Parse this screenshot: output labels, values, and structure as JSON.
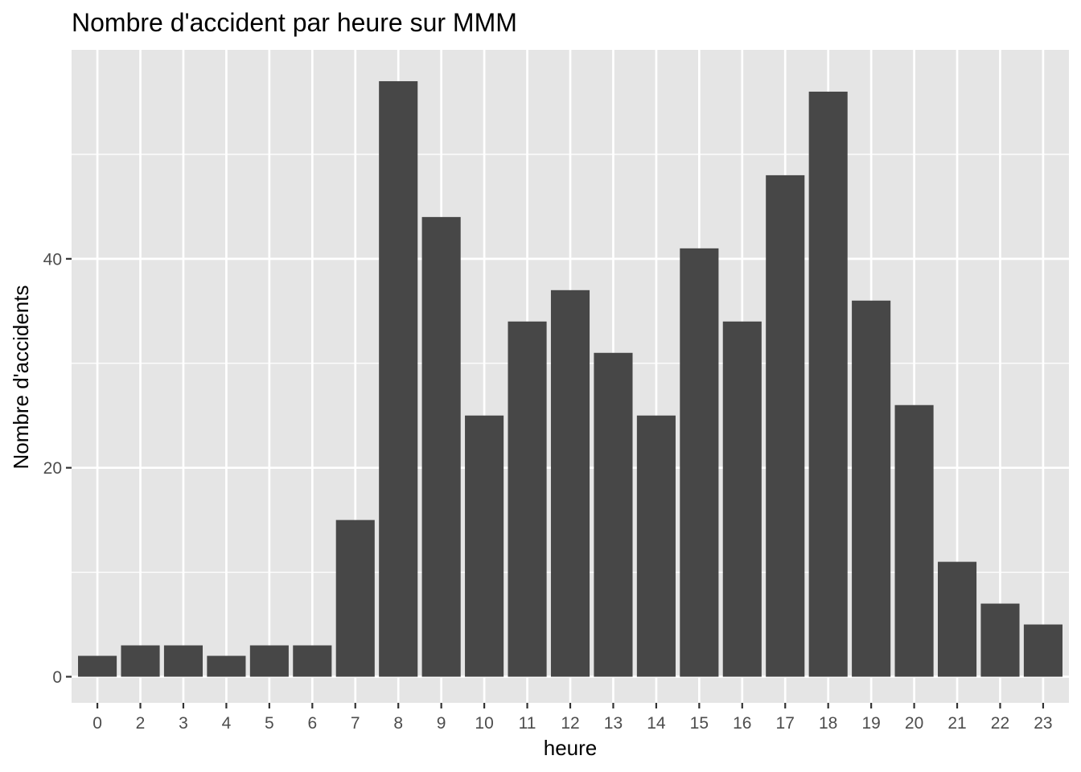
{
  "chart_data": {
    "type": "bar",
    "title": "Nombre d'accident par heure sur MMM",
    "xlabel": "heure",
    "ylabel": "Nombre d'accidents",
    "categories": [
      "0",
      "2",
      "3",
      "4",
      "5",
      "6",
      "7",
      "8",
      "9",
      "10",
      "11",
      "12",
      "13",
      "14",
      "15",
      "16",
      "17",
      "18",
      "19",
      "20",
      "21",
      "22",
      "23"
    ],
    "values": [
      2,
      3,
      3,
      2,
      3,
      3,
      15,
      57,
      44,
      25,
      34,
      37,
      31,
      25,
      41,
      34,
      48,
      56,
      36,
      26,
      11,
      7,
      5
    ],
    "ylim": [
      -2.5,
      60
    ],
    "yticks": [
      0,
      20,
      40
    ],
    "y_tick_labels": [
      "0",
      "20",
      "40"
    ],
    "grid": true,
    "colors": {
      "panel_background": "#e5e5e5",
      "grid_major": "#ffffff",
      "bar_fill": "#474747",
      "tick_text": "#4d4d4d",
      "tick_mark": "#333333"
    }
  }
}
